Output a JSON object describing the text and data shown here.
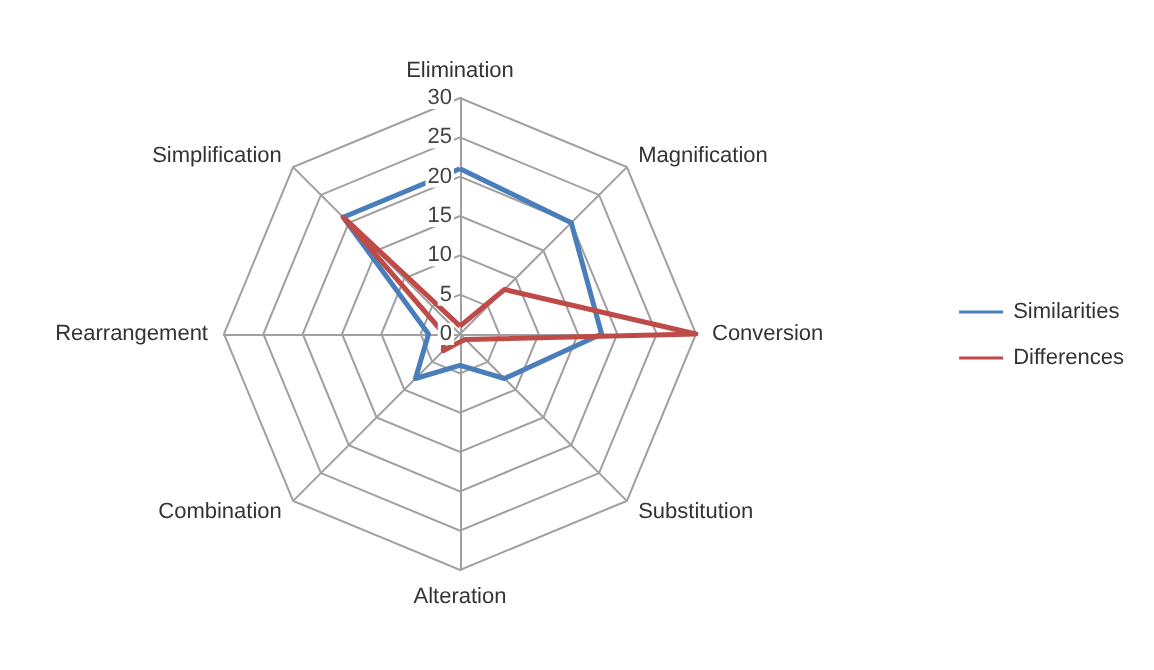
{
  "chart_data": {
    "type": "radar",
    "categories": [
      "Elimination",
      "Magnification",
      "Conversion",
      "Substitution",
      "Alteration",
      "Combination",
      "Rearrangement",
      "Simplification"
    ],
    "series": [
      {
        "name": "Similarities",
        "color": "#4a7ebb",
        "values": [
          21,
          20,
          18,
          8,
          4,
          8,
          4,
          21
        ]
      },
      {
        "name": "Differences",
        "color": "#be4b48",
        "values": [
          1,
          8,
          30,
          1,
          1,
          3,
          2,
          21
        ]
      }
    ],
    "ylim": [
      0,
      30
    ],
    "yticks": [
      0,
      5,
      10,
      15,
      20,
      25,
      30
    ],
    "grid": true,
    "legend": "right",
    "marker": "none",
    "line_style": "solid"
  }
}
